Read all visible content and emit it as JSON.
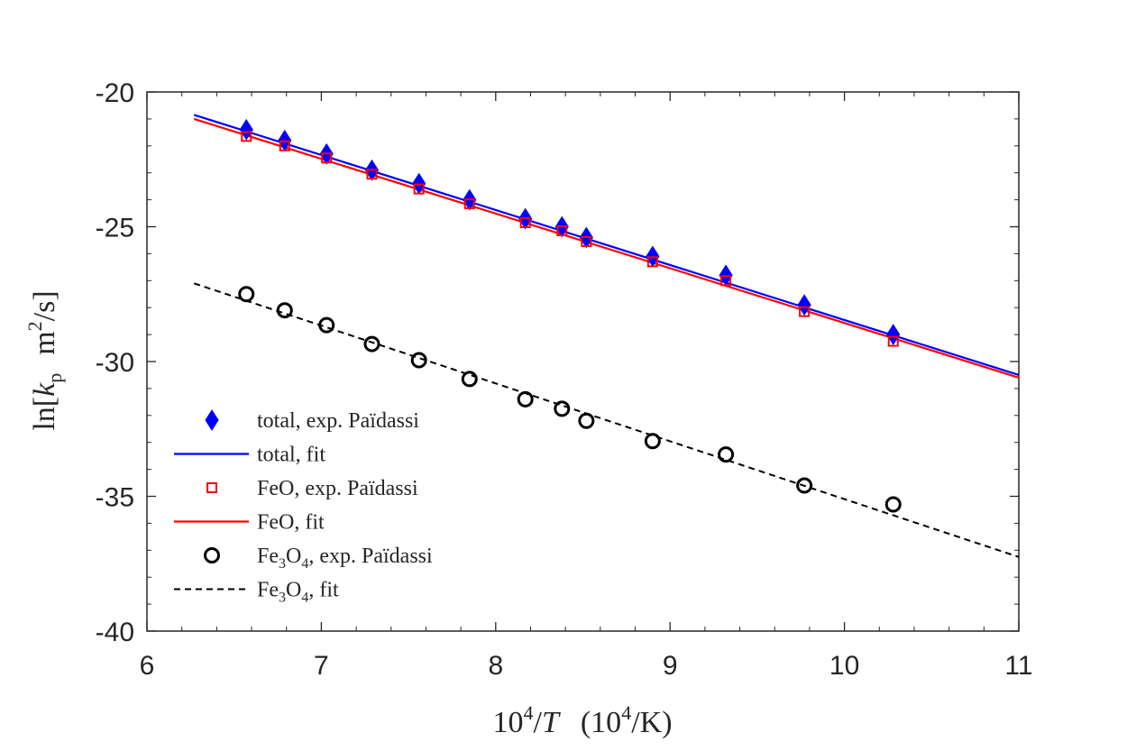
{
  "chart_data": {
    "type": "scatter",
    "xlim": [
      6,
      11
    ],
    "ylim": [
      -40,
      -20
    ],
    "xticks": [
      "6",
      "7",
      "8",
      "9",
      "10",
      "11"
    ],
    "yticks": [
      "-20",
      "-25",
      "-30",
      "-35",
      "-40"
    ],
    "xlabel": {
      "base": "10",
      "sup": "4",
      "slash": "/",
      "var": "T",
      "unit_open": "(10",
      "unit_sup": "4",
      "unit_close": "/K)"
    },
    "ylabel": {
      "fn": "ln[",
      "var": "k",
      "sub": "p",
      "unit": "m",
      "unit_sup": "2",
      "unit_rest": "/s]"
    },
    "x": [
      6.57,
      6.79,
      7.03,
      7.29,
      7.56,
      7.85,
      8.17,
      8.38,
      8.52,
      8.9,
      9.32,
      9.77,
      10.28
    ],
    "series": [
      {
        "name": "total, exp. Païdassi",
        "marker": "diamond",
        "color": "#0000ff",
        "values": [
          -21.4,
          -21.8,
          -22.3,
          -22.9,
          -23.4,
          -24.0,
          -24.7,
          -25.0,
          -25.4,
          -26.1,
          -26.8,
          -27.9,
          -29.0
        ]
      },
      {
        "name": "FeO, exp. Païdassi",
        "marker": "square",
        "color": "#ff0000",
        "values": [
          -21.65,
          -22.0,
          -22.45,
          -23.05,
          -23.6,
          -24.15,
          -24.85,
          -25.15,
          -25.55,
          -26.3,
          -27.0,
          -28.15,
          -29.25
        ]
      },
      {
        "name": "Fe3O4, exp. Païdassi",
        "marker": "circle",
        "color": "#000000",
        "values": [
          -27.5,
          -28.1,
          -28.65,
          -29.35,
          -29.95,
          -30.65,
          -31.4,
          -31.75,
          -32.2,
          -32.95,
          -33.45,
          -34.6,
          -35.3
        ]
      }
    ],
    "fits": [
      {
        "name": "total, fit",
        "color": "#0000ff",
        "dash": "solid",
        "x": [
          6.27,
          11.0
        ],
        "y": [
          -20.85,
          -30.5
        ]
      },
      {
        "name": "FeO, fit",
        "color": "#ff0000",
        "dash": "solid",
        "x": [
          6.27,
          11.0
        ],
        "y": [
          -21.0,
          -30.6
        ]
      },
      {
        "name": "Fe3O4, fit",
        "color": "#000000",
        "dash": "dashed",
        "x": [
          6.27,
          11.0
        ],
        "y": [
          -27.1,
          -37.25
        ]
      }
    ],
    "legend": {
      "placement": "lower-left",
      "entries": [
        {
          "label": "total, exp. Païdassi",
          "kind": "marker",
          "marker": "diamond",
          "color": "#0000ff"
        },
        {
          "label": "total, fit",
          "kind": "line",
          "dash": "solid",
          "color": "#0000ff"
        },
        {
          "label": "FeO, exp. Païdassi",
          "kind": "marker",
          "marker": "square",
          "color": "#ff0000"
        },
        {
          "label": "FeO, fit",
          "kind": "line",
          "dash": "solid",
          "color": "#ff0000"
        },
        {
          "label": "Fe3O4, exp. Païdassi",
          "kind": "marker",
          "marker": "circle",
          "color": "#000000",
          "formula": [
            "Fe",
            "3",
            "O",
            "4",
            ", exp. Païdassi"
          ]
        },
        {
          "label": "Fe3O4, fit",
          "kind": "line",
          "dash": "dashed",
          "color": "#000000",
          "formula": [
            "Fe",
            "3",
            "O",
            "4",
            ", fit"
          ]
        }
      ]
    }
  }
}
